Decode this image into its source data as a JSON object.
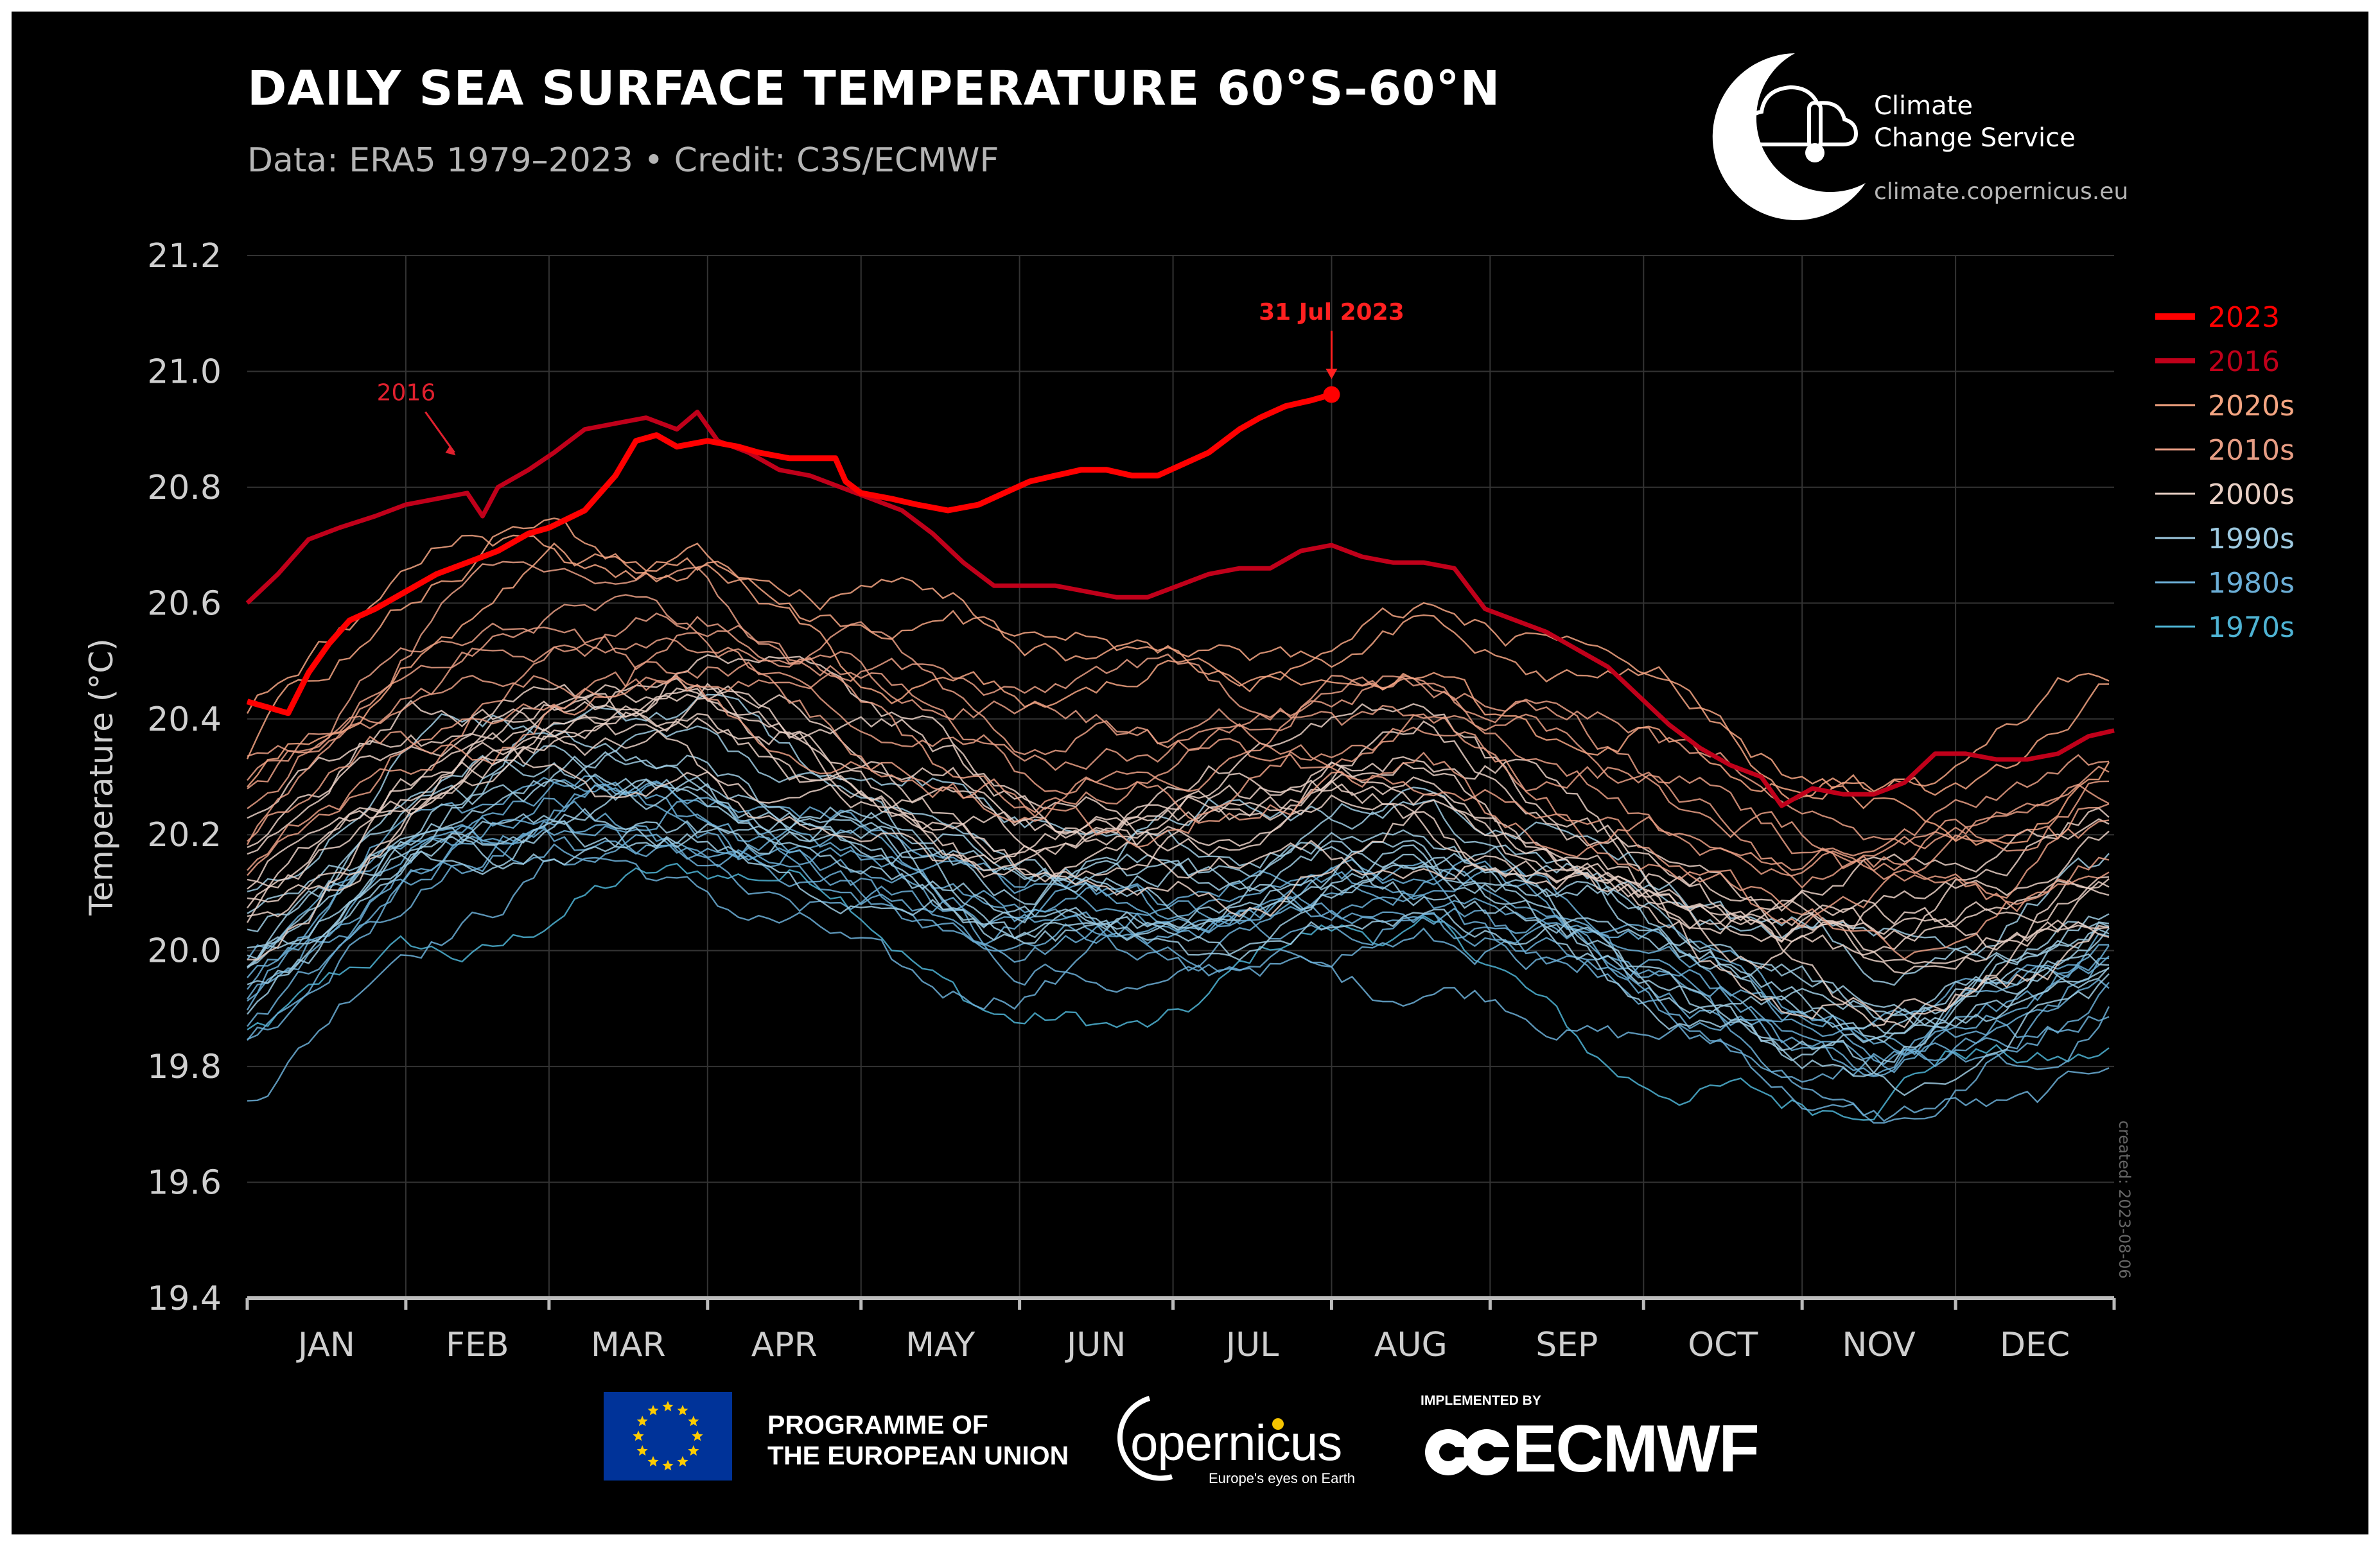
{
  "header": {
    "title": "DAILY SEA SURFACE TEMPERATURE 60°S–60°N",
    "subtitle": "Data: ERA5 1979–2023 • Credit: C3S/ECMWF"
  },
  "branding": {
    "c3s_name_line1": "Climate",
    "c3s_name_line2": "Change Service",
    "c3s_url": "climate.copernicus.eu",
    "created": "created: 2023-08-06"
  },
  "footer": {
    "eu_line1": "PROGRAMME OF",
    "eu_line2": "THE EUROPEAN UNION",
    "copernicus_word": "opernicus",
    "copernicus_tagline": "Europe's eyes on Earth",
    "implemented_by": "IMPLEMENTED BY",
    "ecmwf_word": "ECMWF"
  },
  "colors": {
    "background": "#000000",
    "y2023": "#ff0000",
    "y2016": "#c0001a",
    "d2020s": "#f4a582",
    "d2010s": "#e79d84",
    "d2000s": "#e8cfc4",
    "d1990s": "#9ecae1",
    "d1980s": "#6baed6",
    "d1970s": "#4eb3d3",
    "grid": "#333333",
    "axis": "#bbbbbb"
  },
  "chart_data": {
    "type": "line",
    "title": "DAILY SEA SURFACE TEMPERATURE 60°S–60°N",
    "ylabel": "Temperature (°C)",
    "xlabel": "",
    "ylim": [
      19.4,
      21.2
    ],
    "y_ticks": [
      "19.4",
      "19.6",
      "19.8",
      "20.0",
      "20.2",
      "20.4",
      "20.6",
      "20.8",
      "21.0",
      "21.2"
    ],
    "months": [
      "JAN",
      "FEB",
      "MAR",
      "APR",
      "MAY",
      "JUN",
      "JUL",
      "AUG",
      "SEP",
      "OCT",
      "NOV",
      "DEC"
    ],
    "grid": true,
    "legend_position": "right",
    "legend": [
      {
        "label": "2023",
        "color": "#ff0000",
        "width": 5
      },
      {
        "label": "2016",
        "color": "#c0001a",
        "width": 4
      },
      {
        "label": "2020s",
        "color": "#f4a582",
        "width": 1.5
      },
      {
        "label": "2010s",
        "color": "#e79d84",
        "width": 1.5
      },
      {
        "label": "2000s",
        "color": "#e8cfc4",
        "width": 1.5
      },
      {
        "label": "1990s",
        "color": "#9ecae1",
        "width": 1.5
      },
      {
        "label": "1980s",
        "color": "#6baed6",
        "width": 1.5
      },
      {
        "label": "1970s",
        "color": "#4eb3d3",
        "width": 1.5
      }
    ],
    "annotations": [
      {
        "text": "2016",
        "day": 43
      },
      {
        "text": "31 Jul 2023",
        "day": 212
      }
    ],
    "series": [
      {
        "name": "2023",
        "highlight": true,
        "color": "#ff0000",
        "points": [
          [
            0,
            20.43
          ],
          [
            4,
            20.42
          ],
          [
            8,
            20.41
          ],
          [
            12,
            20.48
          ],
          [
            16,
            20.53
          ],
          [
            20,
            20.57
          ],
          [
            25,
            20.59
          ],
          [
            31,
            20.62
          ],
          [
            37,
            20.65
          ],
          [
            43,
            20.67
          ],
          [
            49,
            20.69
          ],
          [
            55,
            20.72
          ],
          [
            59,
            20.73
          ],
          [
            66,
            20.76
          ],
          [
            72,
            20.82
          ],
          [
            76,
            20.88
          ],
          [
            80,
            20.89
          ],
          [
            84,
            20.87
          ],
          [
            90,
            20.88
          ],
          [
            96,
            20.87
          ],
          [
            100,
            20.86
          ],
          [
            106,
            20.85
          ],
          [
            110,
            20.85
          ],
          [
            115,
            20.85
          ],
          [
            117,
            20.81
          ],
          [
            120,
            20.79
          ],
          [
            126,
            20.78
          ],
          [
            131,
            20.77
          ],
          [
            137,
            20.76
          ],
          [
            143,
            20.77
          ],
          [
            148,
            20.79
          ],
          [
            153,
            20.81
          ],
          [
            158,
            20.82
          ],
          [
            163,
            20.83
          ],
          [
            168,
            20.83
          ],
          [
            173,
            20.82
          ],
          [
            178,
            20.82
          ],
          [
            183,
            20.84
          ],
          [
            188,
            20.86
          ],
          [
            194,
            20.9
          ],
          [
            198,
            20.92
          ],
          [
            203,
            20.94
          ],
          [
            208,
            20.95
          ],
          [
            212,
            20.96
          ]
        ]
      },
      {
        "name": "2016",
        "highlight": true,
        "color": "#c0001a",
        "points": [
          [
            0,
            20.6
          ],
          [
            6,
            20.65
          ],
          [
            12,
            20.71
          ],
          [
            18,
            20.73
          ],
          [
            25,
            20.75
          ],
          [
            31,
            20.77
          ],
          [
            37,
            20.78
          ],
          [
            43,
            20.79
          ],
          [
            46,
            20.75
          ],
          [
            49,
            20.8
          ],
          [
            55,
            20.83
          ],
          [
            60,
            20.86
          ],
          [
            66,
            20.9
          ],
          [
            72,
            20.91
          ],
          [
            78,
            20.92
          ],
          [
            84,
            20.9
          ],
          [
            88,
            20.93
          ],
          [
            92,
            20.88
          ],
          [
            98,
            20.86
          ],
          [
            104,
            20.83
          ],
          [
            110,
            20.82
          ],
          [
            116,
            20.8
          ],
          [
            122,
            20.78
          ],
          [
            128,
            20.76
          ],
          [
            134,
            20.72
          ],
          [
            140,
            20.67
          ],
          [
            146,
            20.63
          ],
          [
            152,
            20.63
          ],
          [
            158,
            20.63
          ],
          [
            164,
            20.62
          ],
          [
            170,
            20.61
          ],
          [
            176,
            20.61
          ],
          [
            182,
            20.63
          ],
          [
            188,
            20.65
          ],
          [
            194,
            20.66
          ],
          [
            200,
            20.66
          ],
          [
            206,
            20.69
          ],
          [
            212,
            20.7
          ],
          [
            218,
            20.68
          ],
          [
            224,
            20.67
          ],
          [
            230,
            20.67
          ],
          [
            236,
            20.66
          ],
          [
            242,
            20.59
          ],
          [
            248,
            20.57
          ],
          [
            254,
            20.55
          ],
          [
            260,
            20.52
          ],
          [
            266,
            20.49
          ],
          [
            272,
            20.44
          ],
          [
            278,
            20.39
          ],
          [
            284,
            20.35
          ],
          [
            290,
            20.32
          ],
          [
            296,
            20.3
          ],
          [
            300,
            20.25
          ],
          [
            306,
            20.28
          ],
          [
            312,
            20.27
          ],
          [
            318,
            20.27
          ],
          [
            324,
            20.29
          ],
          [
            330,
            20.34
          ],
          [
            336,
            20.34
          ],
          [
            342,
            20.33
          ],
          [
            348,
            20.33
          ],
          [
            354,
            20.34
          ],
          [
            360,
            20.37
          ],
          [
            365,
            20.38
          ]
        ]
      }
    ],
    "decade_bands": [
      {
        "name": "2020s",
        "color": "#f4a582",
        "count": 3,
        "base": 0.32,
        "spread": 0.1,
        "amp": 0.3
      },
      {
        "name": "2010s",
        "color": "#e79d84",
        "count": 8,
        "base": 0.24,
        "spread": 0.12,
        "amp": 0.3
      },
      {
        "name": "2000s",
        "color": "#e8cfc4",
        "count": 10,
        "base": 0.1,
        "spread": 0.1,
        "amp": 0.3
      },
      {
        "name": "1990s",
        "color": "#9ecae1",
        "count": 10,
        "base": -0.02,
        "spread": 0.1,
        "amp": 0.3
      },
      {
        "name": "1980s",
        "color": "#6baed6",
        "count": 10,
        "base": -0.12,
        "spread": 0.1,
        "amp": 0.3
      },
      {
        "name": "1970s",
        "color": "#4eb3d3",
        "count": 1,
        "base": -0.22,
        "spread": 0.05,
        "amp": 0.3
      }
    ]
  }
}
